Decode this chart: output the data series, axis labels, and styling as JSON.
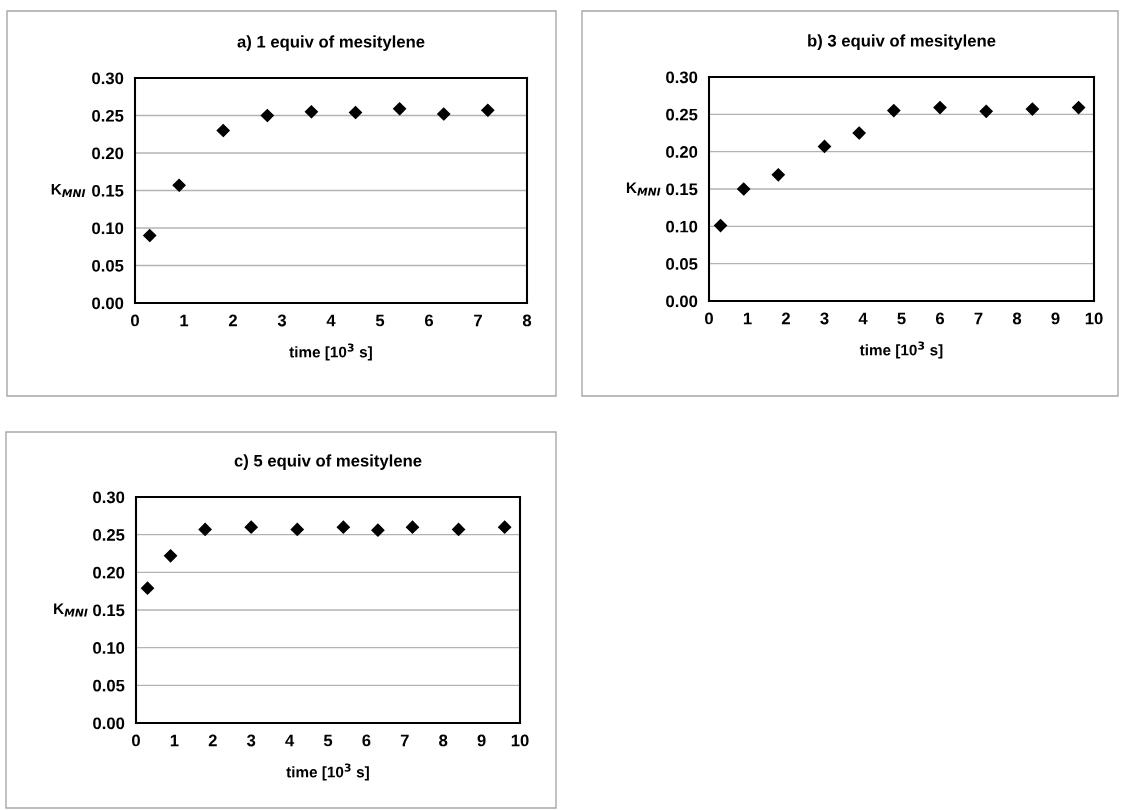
{
  "chart_data": [
    {
      "type": "scatter",
      "title": "a) 1 equiv of mesitylene",
      "xlabel": "time [10$^{3}$ s]",
      "ylabel": "K$_{MNI}$",
      "marker": "diamond",
      "grid": "y",
      "series": [
        {
          "color": "#000000",
          "x": [
            0.3,
            0.9,
            1.8,
            2.7,
            3.6,
            4.5,
            5.4,
            6.3,
            7.2
          ],
          "values": [
            0.09,
            0.157,
            0.23,
            0.25,
            0.255,
            0.254,
            0.259,
            0.252,
            0.257
          ]
        }
      ],
      "xlim": [
        0,
        8
      ],
      "xticks": [
        0,
        1,
        2,
        3,
        4,
        5,
        6,
        7,
        8
      ],
      "ylim": [
        0,
        0.3
      ],
      "yticks": [
        {
          "value": 0,
          "label": "0.00"
        },
        {
          "value": 0.05,
          "label": "0.05"
        },
        {
          "value": 0.1,
          "label": "0.10"
        },
        {
          "value": 0.15,
          "label": "0.15"
        },
        {
          "value": 0.2,
          "label": "0.20"
        },
        {
          "value": 0.25,
          "label": "0.25"
        },
        {
          "value": 0.3,
          "label": "0.30"
        }
      ]
    },
    {
      "type": "scatter",
      "title": "b) 3 equiv of mesitylene",
      "xlabel": "time [10$^{3}$ s]",
      "ylabel": "K$_{MNI}$",
      "marker": "diamond",
      "grid": "y",
      "series": [
        {
          "color": "#000000",
          "x": [
            0.3,
            0.9,
            1.8,
            3.0,
            3.9,
            4.8,
            6.0,
            7.2,
            8.4,
            9.6
          ],
          "values": [
            0.101,
            0.15,
            0.169,
            0.207,
            0.225,
            0.255,
            0.259,
            0.254,
            0.257,
            0.259
          ]
        }
      ],
      "xlim": [
        0,
        10
      ],
      "xticks": [
        0,
        1,
        2,
        3,
        4,
        5,
        6,
        7,
        8,
        9,
        10
      ],
      "ylim": [
        0,
        0.3
      ],
      "yticks": [
        {
          "value": 0,
          "label": "0.00"
        },
        {
          "value": 0.05,
          "label": "0.05"
        },
        {
          "value": 0.1,
          "label": "0.10"
        },
        {
          "value": 0.15,
          "label": "0.15"
        },
        {
          "value": 0.2,
          "label": "0.20"
        },
        {
          "value": 0.25,
          "label": "0.25"
        },
        {
          "value": 0.3,
          "label": "0.30"
        }
      ]
    },
    {
      "type": "scatter",
      "title": "c) 5 equiv of mesitylene",
      "xlabel": "time [10$^{3}$ s]",
      "ylabel": "K$_{MNI}$",
      "marker": "diamond",
      "grid": "y",
      "series": [
        {
          "color": "#000000",
          "x": [
            0.3,
            0.9,
            1.8,
            3.0,
            4.2,
            5.4,
            6.3,
            7.2,
            8.4,
            9.6
          ],
          "values": [
            0.179,
            0.222,
            0.257,
            0.26,
            0.257,
            0.26,
            0.256,
            0.26,
            0.257,
            0.26
          ]
        }
      ],
      "xlim": [
        0,
        10
      ],
      "xticks": [
        0,
        1,
        2,
        3,
        4,
        5,
        6,
        7,
        8,
        9,
        10
      ],
      "ylim": [
        0,
        0.3
      ],
      "yticks": [
        {
          "value": 0,
          "label": "0.00"
        },
        {
          "value": 0.05,
          "label": "0.05"
        },
        {
          "value": 0.1,
          "label": "0.10"
        },
        {
          "value": 0.15,
          "label": "0.15"
        },
        {
          "value": 0.2,
          "label": "0.20"
        },
        {
          "value": 0.25,
          "label": "0.25"
        },
        {
          "value": 0.3,
          "label": "0.30"
        }
      ]
    }
  ]
}
